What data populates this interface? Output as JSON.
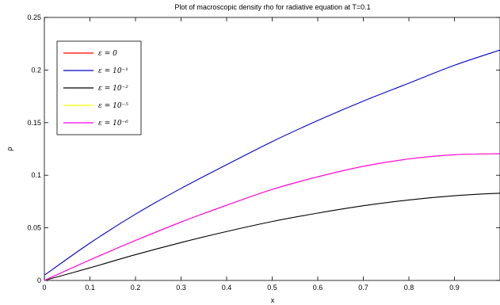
{
  "chart_data": {
    "type": "line",
    "title": "Plot of macroscopic density rho for radiative equation at T=0.1",
    "xlabel": "x",
    "ylabel": "ρ",
    "xlim": [
      0,
      1
    ],
    "ylim": [
      0,
      0.25
    ],
    "x_ticks": [
      "0",
      "0.1",
      "0.2",
      "0.3",
      "0.4",
      "0.5",
      "0.6",
      "0.7",
      "0.8",
      "0.9"
    ],
    "y_ticks": [
      "0",
      "0.05",
      "0.1",
      "0.15",
      "0.2",
      "0.25"
    ],
    "grid": false,
    "legend_position": "top-left",
    "x": [
      0,
      0.1,
      0.2,
      0.3,
      0.4,
      0.5,
      0.6,
      0.7,
      0.8,
      0.9,
      1.0
    ],
    "series": [
      {
        "name": "ε = 0",
        "color": "#ff0000",
        "values": [
          0,
          0.0195,
          0.038,
          0.0555,
          0.0715,
          0.0865,
          0.0985,
          0.1085,
          0.1155,
          0.1195,
          0.1205
        ]
      },
      {
        "name": "ε = 10⁻¹",
        "color": "#0000cc",
        "values": [
          0.005,
          0.0355,
          0.063,
          0.0875,
          0.11,
          0.132,
          0.152,
          0.1705,
          0.1875,
          0.2045,
          0.219
        ]
      },
      {
        "name": "ε = 10⁻²",
        "color": "#000000",
        "values": [
          0,
          0.012,
          0.0245,
          0.036,
          0.0465,
          0.056,
          0.064,
          0.071,
          0.0765,
          0.0805,
          0.083
        ]
      },
      {
        "name": "ε = 10⁻⁵",
        "color": "#ffff00",
        "values": [
          0,
          0.0195,
          0.038,
          0.0555,
          0.0715,
          0.0865,
          0.0985,
          0.1085,
          0.1155,
          0.1195,
          0.1205
        ]
      },
      {
        "name": "ε = 10⁻⁶",
        "color": "#ff00ff",
        "values": [
          0,
          0.0195,
          0.038,
          0.0555,
          0.0715,
          0.0865,
          0.0985,
          0.1085,
          0.1155,
          0.1195,
          0.1205
        ]
      }
    ]
  }
}
